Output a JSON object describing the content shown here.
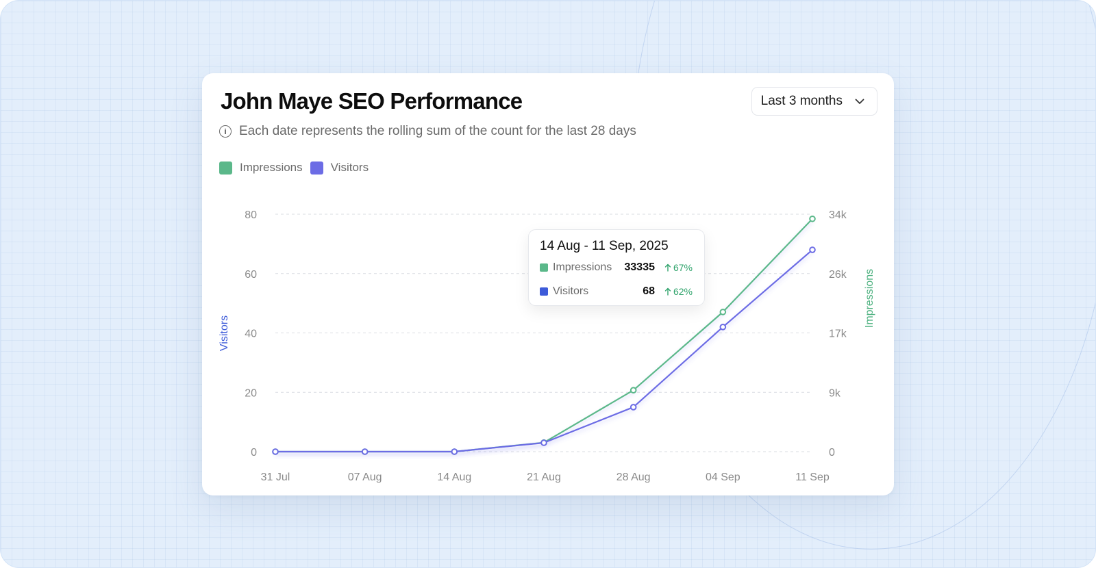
{
  "header": {
    "title": "John Maye SEO Performance",
    "subtitle": "Each date represents the rolling sum of the count for the last 28 days",
    "info_icon": "info-icon",
    "date_range": {
      "selected": "Last 3 months",
      "icon": "chevron-down-icon"
    }
  },
  "legend": [
    {
      "name": "Impressions",
      "color": "#5bb88a"
    },
    {
      "name": "Visitors",
      "color": "#6c6ce5"
    }
  ],
  "tooltip": {
    "title": "14 Aug - 11 Sep, 2025",
    "rows": [
      {
        "label": "Impressions",
        "value": "33335",
        "delta": "67%",
        "color": "#5bb88a"
      },
      {
        "label": "Visitors",
        "value": "68",
        "delta": "62%",
        "color": "#3d5bd9"
      }
    ]
  },
  "chart_data": {
    "type": "line",
    "x": [
      "31 Jul",
      "07 Aug",
      "14 Aug",
      "21 Aug",
      "28 Aug",
      "04 Sep",
      "11 Sep"
    ],
    "y_left": {
      "label": "Visitors",
      "ticks": [
        "0",
        "20",
        "40",
        "60",
        "80"
      ],
      "range": [
        0,
        80
      ],
      "color": "#3d5bd9"
    },
    "y_right": {
      "label": "Impressions",
      "ticks": [
        "0",
        "9k",
        "17k",
        "26k",
        "34k"
      ],
      "range": [
        0,
        34000
      ],
      "color": "#4bb07e"
    },
    "series": [
      {
        "name": "Impressions",
        "axis": "right",
        "color": "#5bb88a",
        "values": [
          0,
          0,
          0,
          1300,
          8800,
          20000,
          33335
        ]
      },
      {
        "name": "Visitors",
        "axis": "left",
        "color": "#6c6ce5",
        "values": [
          0,
          0,
          0,
          3,
          15,
          42,
          68
        ]
      }
    ],
    "grid": true,
    "legend_position": "top-left"
  }
}
